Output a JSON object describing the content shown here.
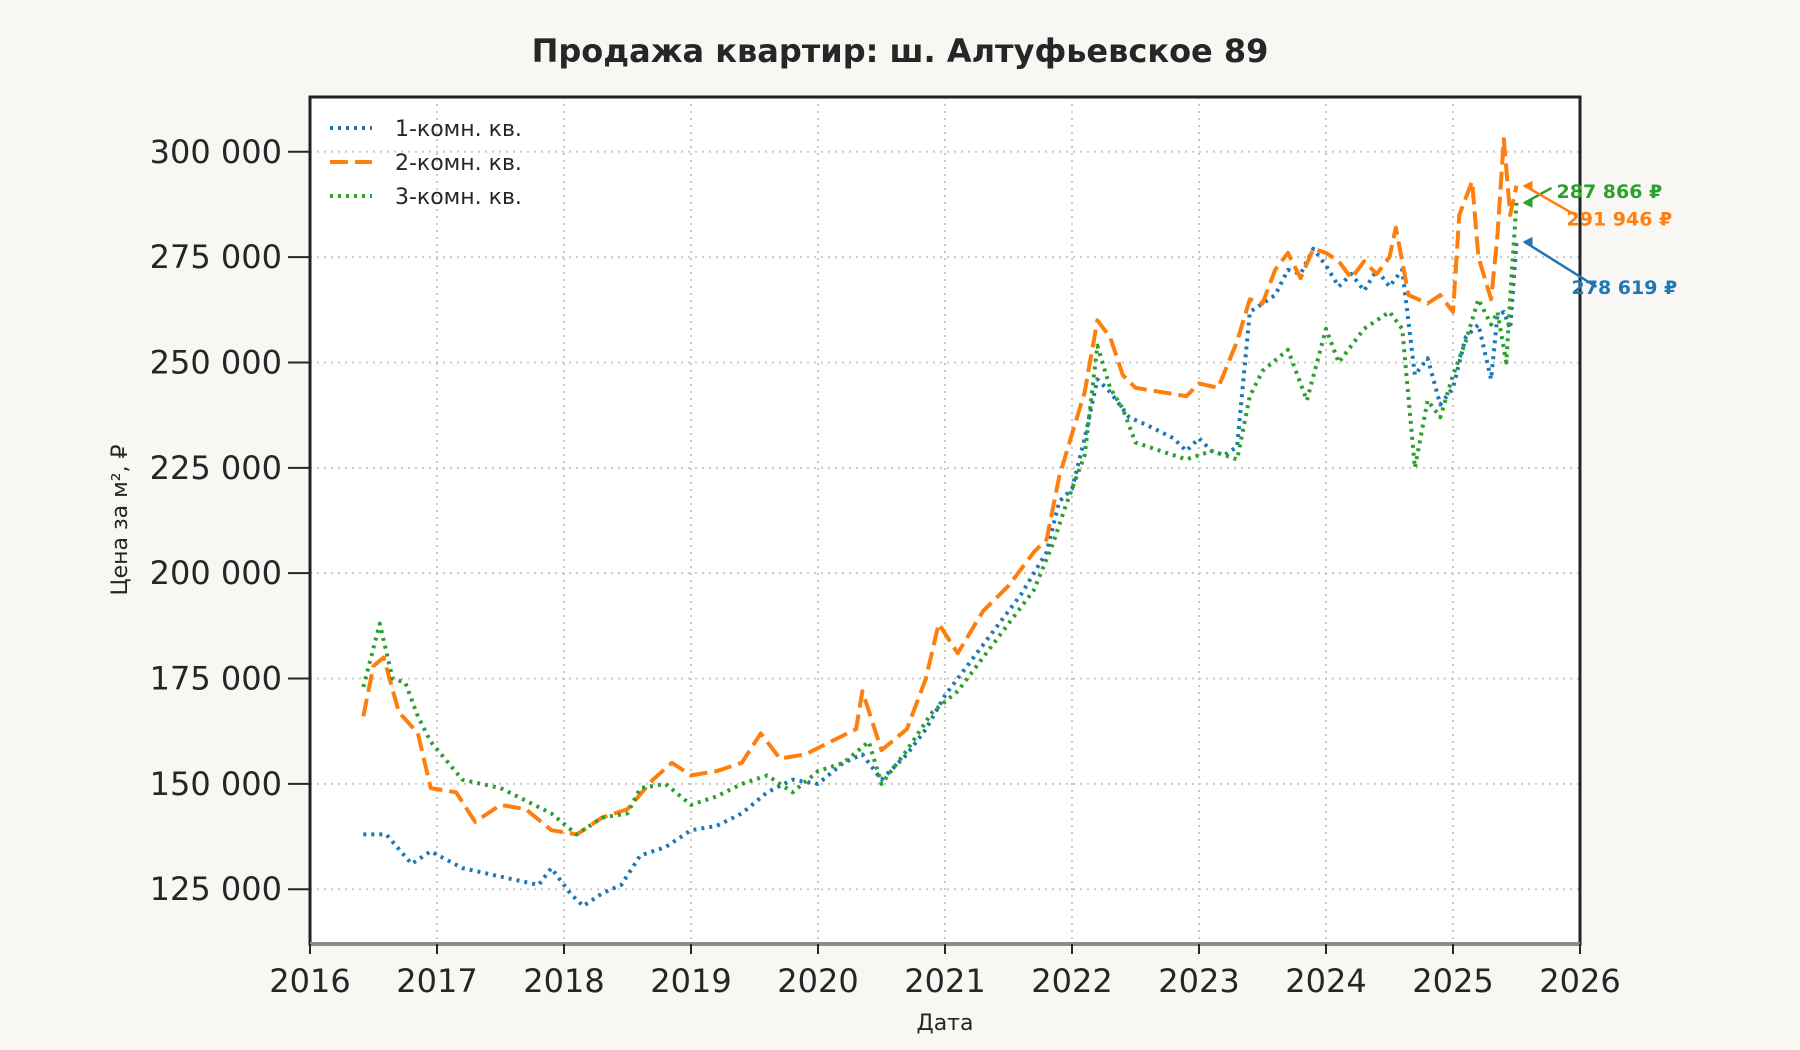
{
  "chart_data": {
    "type": "line",
    "title": "Продажа квартир: ш. Алтуфьевское 89",
    "xlabel": "Дата",
    "ylabel": "Цена за м², ₽",
    "xlim": [
      2016,
      2026
    ],
    "ylim": [
      112000,
      313000
    ],
    "x_ticks": [
      2016,
      2017,
      2018,
      2019,
      2020,
      2021,
      2022,
      2023,
      2024,
      2025,
      2026
    ],
    "x_tick_labels": [
      "2016",
      "2017",
      "2018",
      "2019",
      "2020",
      "2021",
      "2022",
      "2023",
      "2024",
      "2025",
      "2026"
    ],
    "y_ticks": [
      125000,
      150000,
      175000,
      200000,
      225000,
      250000,
      275000,
      300000
    ],
    "y_tick_labels": [
      "125 000",
      "150 000",
      "175 000",
      "200 000",
      "225 000",
      "250 000",
      "275 000",
      "300 000"
    ],
    "grid": true,
    "legend_position": "top-left",
    "series": [
      {
        "name": "1-комн. кв.",
        "color": "#1f77b4",
        "style": "dotted",
        "x": [
          2016.42,
          2016.6,
          2016.8,
          2016.95,
          2017.2,
          2017.5,
          2017.8,
          2017.9,
          2018.05,
          2018.15,
          2018.3,
          2018.45,
          2018.6,
          2018.8,
          2019.0,
          2019.2,
          2019.4,
          2019.6,
          2019.8,
          2020.0,
          2020.2,
          2020.35,
          2020.5,
          2020.7,
          2020.85,
          2021.0,
          2021.2,
          2021.4,
          2021.6,
          2021.8,
          2021.9,
          2022.0,
          2022.1,
          2022.2,
          2022.3,
          2022.45,
          2022.6,
          2022.8,
          2022.9,
          2023.0,
          2023.1,
          2023.2,
          2023.3,
          2023.4,
          2023.5,
          2023.6,
          2023.7,
          2023.8,
          2023.9,
          2024.0,
          2024.1,
          2024.2,
          2024.3,
          2024.4,
          2024.5,
          2024.6,
          2024.7,
          2024.8,
          2024.9,
          2025.0,
          2025.1,
          2025.2,
          2025.3,
          2025.35,
          2025.4,
          2025.45,
          2025.5
        ],
        "y": [
          138000,
          138000,
          131000,
          134000,
          130000,
          128000,
          126000,
          130000,
          124000,
          121000,
          124000,
          126000,
          133000,
          135000,
          139000,
          140000,
          143000,
          148000,
          151000,
          150000,
          155000,
          157000,
          151000,
          157000,
          163000,
          171000,
          179000,
          187000,
          195000,
          205000,
          217000,
          220000,
          232000,
          246000,
          243000,
          237000,
          235000,
          232000,
          229000,
          232000,
          229000,
          228000,
          230000,
          262000,
          264000,
          266000,
          272000,
          271000,
          277000,
          273000,
          268000,
          271000,
          267000,
          272000,
          268000,
          272000,
          247000,
          251000,
          240000,
          244000,
          256000,
          259000,
          246000,
          261000,
          262000,
          258000,
          278619
        ]
      },
      {
        "name": "2-комн. кв.",
        "color": "#ff7f0e",
        "style": "dashed",
        "x": [
          2016.42,
          2016.5,
          2016.58,
          2016.7,
          2016.85,
          2016.95,
          2017.15,
          2017.3,
          2017.5,
          2017.7,
          2017.9,
          2018.1,
          2018.3,
          2018.5,
          2018.7,
          2018.85,
          2019.0,
          2019.2,
          2019.4,
          2019.55,
          2019.7,
          2019.9,
          2020.1,
          2020.3,
          2020.35,
          2020.5,
          2020.7,
          2020.85,
          2020.95,
          2021.1,
          2021.3,
          2021.5,
          2021.7,
          2021.8,
          2021.9,
          2022.0,
          2022.1,
          2022.2,
          2022.3,
          2022.4,
          2022.5,
          2022.7,
          2022.9,
          2023.0,
          2023.15,
          2023.3,
          2023.4,
          2023.5,
          2023.6,
          2023.7,
          2023.8,
          2023.9,
          2024.0,
          2024.1,
          2024.2,
          2024.3,
          2024.4,
          2024.5,
          2024.55,
          2024.65,
          2024.8,
          2024.9,
          2025.0,
          2025.05,
          2025.15,
          2025.2,
          2025.3,
          2025.35,
          2025.4,
          2025.45,
          2025.5
        ],
        "y": [
          166000,
          178000,
          180000,
          167000,
          162000,
          149000,
          148000,
          141000,
          145000,
          144000,
          139000,
          138000,
          142000,
          144000,
          151000,
          155000,
          152000,
          153000,
          155000,
          162000,
          156000,
          157000,
          160000,
          163000,
          172000,
          158000,
          163000,
          175000,
          188000,
          181000,
          191000,
          197000,
          205000,
          208000,
          223000,
          233000,
          243000,
          260000,
          256000,
          247000,
          244000,
          243000,
          242000,
          245000,
          244000,
          255000,
          265000,
          264000,
          272000,
          276000,
          270000,
          277000,
          276000,
          274000,
          270000,
          274000,
          271000,
          275000,
          282000,
          266000,
          264000,
          266000,
          262000,
          285000,
          293000,
          275000,
          265000,
          280000,
          303000,
          285000,
          291946
        ]
      },
      {
        "name": "3-комн. кв.",
        "color": "#2ca02c",
        "style": "dotted",
        "x": [
          2016.42,
          2016.55,
          2016.65,
          2016.75,
          2016.85,
          2016.95,
          2017.2,
          2017.5,
          2017.7,
          2017.9,
          2018.1,
          2018.3,
          2018.5,
          2018.6,
          2018.8,
          2019.0,
          2019.2,
          2019.4,
          2019.6,
          2019.8,
          2020.0,
          2020.2,
          2020.4,
          2020.5,
          2020.7,
          2020.9,
          2021.1,
          2021.3,
          2021.5,
          2021.7,
          2021.85,
          2021.95,
          2022.1,
          2022.2,
          2022.3,
          2022.4,
          2022.5,
          2022.7,
          2022.9,
          2023.1,
          2023.3,
          2023.4,
          2023.5,
          2023.7,
          2023.85,
          2024.0,
          2024.1,
          2024.3,
          2024.5,
          2024.6,
          2024.7,
          2024.8,
          2024.9,
          2025.0,
          2025.1,
          2025.2,
          2025.3,
          2025.35,
          2025.42,
          2025.46,
          2025.5
        ],
        "y": [
          173000,
          188000,
          175000,
          174000,
          166000,
          160000,
          151000,
          149000,
          146000,
          143000,
          138000,
          142000,
          143000,
          149000,
          150000,
          145000,
          147000,
          150000,
          152000,
          148000,
          153000,
          155000,
          160000,
          150000,
          158000,
          167000,
          172000,
          180000,
          188000,
          196000,
          207000,
          216000,
          228000,
          254000,
          244000,
          239000,
          231000,
          229000,
          227000,
          229000,
          227000,
          242000,
          248000,
          253000,
          241000,
          258000,
          250000,
          258000,
          262000,
          258000,
          225000,
          241000,
          237000,
          247000,
          255000,
          265000,
          259000,
          262000,
          250000,
          270000,
          287866
        ]
      }
    ],
    "annotations": [
      {
        "text": "287 866 ₽",
        "series": "3-комн. кв.",
        "x": 2025.5,
        "y": 287866,
        "color": "#2ca02c"
      },
      {
        "text": "291 946 ₽",
        "series": "2-комн. кв.",
        "x": 2025.5,
        "y": 291946,
        "color": "#ff7f0e"
      },
      {
        "text": "278 619 ₽",
        "series": "1-комн. кв.",
        "x": 2025.5,
        "y": 278619,
        "color": "#1f77b4"
      }
    ]
  }
}
